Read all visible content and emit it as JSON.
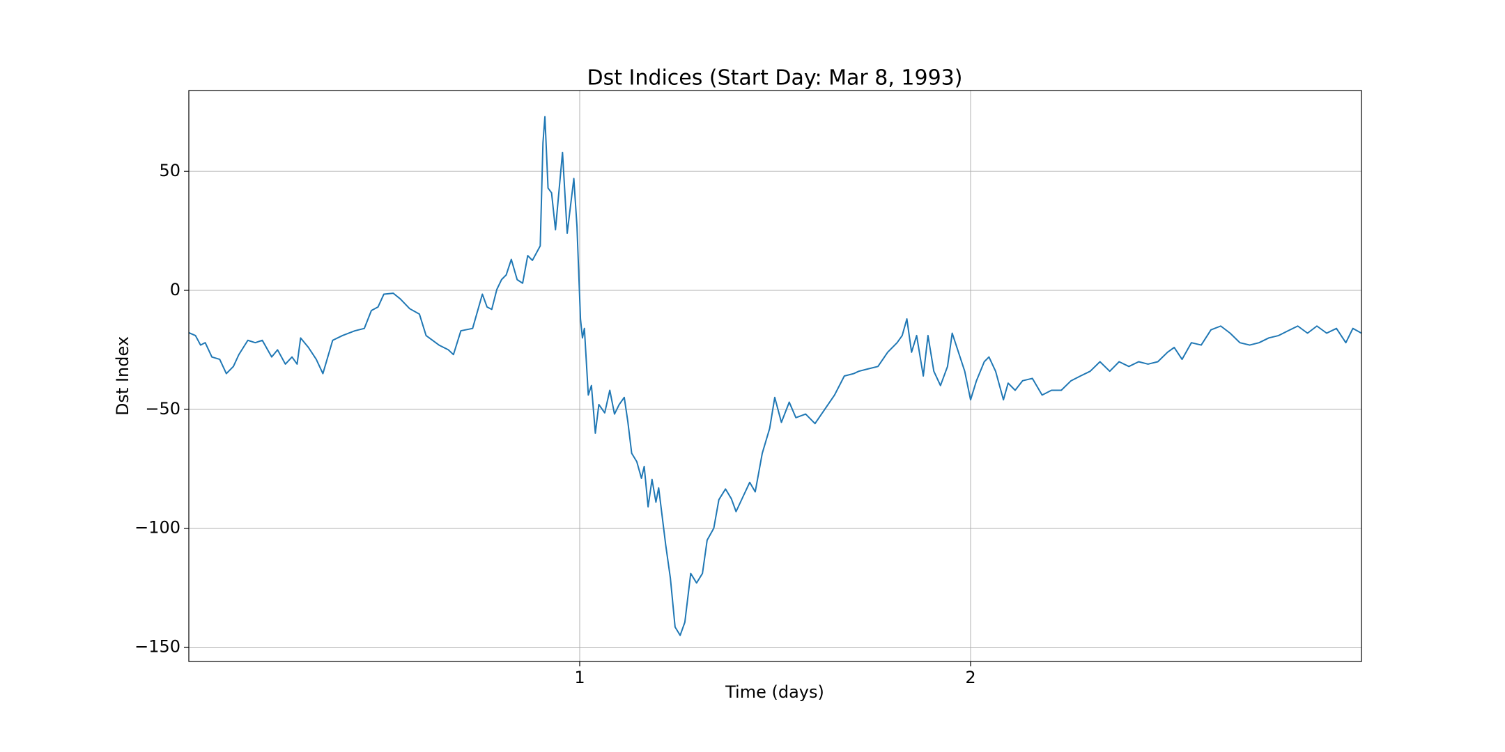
{
  "chart_data": {
    "type": "line",
    "title": "Dst Indices (Start Day: Mar 8, 1993)",
    "x_label": "Time (days)",
    "y_label": "Dst Index",
    "xlim": [
      0,
      3
    ],
    "xticks": [
      1,
      2
    ],
    "ylim": [
      -156,
      84
    ],
    "yticks": [
      {
        "value": -150,
        "label": "−150"
      },
      {
        "value": -100,
        "label": "−100"
      },
      {
        "value": -50,
        "label": "−50"
      },
      0,
      50
    ],
    "grid": true,
    "series": [
      {
        "color": "#1f77b4",
        "x": [
          0,
          0.017,
          0.03,
          0.042,
          0.059,
          0.079,
          0.096,
          0.114,
          0.128,
          0.151,
          0.17,
          0.188,
          0.212,
          0.227,
          0.247,
          0.264,
          0.277,
          0.286,
          0.306,
          0.326,
          0.343,
          0.368,
          0.393,
          0.425,
          0.449,
          0.467,
          0.484,
          0.499,
          0.523,
          0.541,
          0.565,
          0.59,
          0.607,
          0.64,
          0.664,
          0.677,
          0.696,
          0.726,
          0.751,
          0.763,
          0.775,
          0.788,
          0.8,
          0.812,
          0.825,
          0.84,
          0.854,
          0.867,
          0.879,
          0.899,
          0.906,
          0.911,
          0.919,
          0.928,
          0.938,
          0.956,
          0.968,
          0.985,
          0.993,
          1.002,
          1.007,
          1.012,
          1.022,
          1.03,
          1.04,
          1.049,
          1.064,
          1.077,
          1.089,
          1.101,
          1.114,
          1.123,
          1.133,
          1.146,
          1.158,
          1.165,
          1.175,
          1.185,
          1.195,
          1.202,
          1.22,
          1.232,
          1.244,
          1.257,
          1.269,
          1.284,
          1.299,
          1.314,
          1.326,
          1.343,
          1.356,
          1.373,
          1.388,
          1.4,
          1.417,
          1.435,
          1.449,
          1.467,
          1.486,
          1.499,
          1.516,
          1.536,
          1.553,
          1.578,
          1.602,
          1.627,
          1.652,
          1.677,
          1.701,
          1.714,
          1.738,
          1.763,
          1.788,
          1.812,
          1.825,
          1.837,
          1.849,
          1.862,
          1.879,
          1.891,
          1.906,
          1.923,
          1.941,
          1.953,
          1.973,
          1.985,
          2.0,
          2.015,
          2.035,
          2.047,
          2.064,
          2.084,
          2.096,
          2.114,
          2.133,
          2.158,
          2.183,
          2.207,
          2.232,
          2.257,
          2.281,
          2.306,
          2.331,
          2.356,
          2.38,
          2.405,
          2.43,
          2.454,
          2.479,
          2.504,
          2.521,
          2.541,
          2.565,
          2.59,
          2.615,
          2.64,
          2.664,
          2.689,
          2.714,
          2.738,
          2.763,
          2.788,
          2.812,
          2.837,
          2.862,
          2.886,
          2.911,
          2.936,
          2.96,
          2.978,
          3.0
        ],
        "values": [
          -17.8,
          -19,
          -23,
          -22,
          -28,
          -29,
          -35,
          -32,
          -27,
          -21,
          -22,
          -21,
          -28,
          -25,
          -31,
          -28,
          -31,
          -20,
          -24,
          -29,
          -35,
          -21,
          -19,
          -17,
          -16,
          -8.5,
          -7,
          -1.6,
          -1.2,
          -3.6,
          -7.7,
          -10,
          -19,
          -23,
          -25,
          -27,
          -17,
          -16,
          -1.6,
          -7,
          -8,
          0.4,
          4.5,
          6.5,
          13,
          4.5,
          3,
          14.6,
          12.6,
          18.7,
          62,
          73,
          43,
          41,
          25.5,
          58,
          24,
          47,
          27,
          -12,
          -20,
          -16,
          -44,
          -40,
          -60,
          -48,
          -51.5,
          -42,
          -52,
          -48,
          -45,
          -55,
          -68.5,
          -72,
          -79,
          -74,
          -91,
          -79.5,
          -89,
          -83,
          -107,
          -121,
          -141.5,
          -145,
          -139.5,
          -119,
          -123,
          -119,
          -105,
          -100,
          -88,
          -83.5,
          -87.6,
          -93,
          -87,
          -80.7,
          -84.7,
          -68.5,
          -58,
          -45,
          -55.5,
          -47,
          -53.5,
          -52,
          -56,
          -50,
          -44,
          -36,
          -35,
          -34,
          -33,
          -32,
          -26,
          -22,
          -19,
          -12,
          -26,
          -19,
          -36,
          -19,
          -34,
          -40,
          -32,
          -18,
          -28,
          -34,
          -46,
          -38,
          -30,
          -28,
          -34,
          -46,
          -39,
          -42,
          -38,
          -37,
          -44,
          -42,
          -42,
          -38,
          -36,
          -34,
          -30,
          -34,
          -30,
          -32,
          -30,
          -31,
          -30,
          -26,
          -24,
          -29,
          -22,
          -23,
          -16.6,
          -15,
          -18,
          -22,
          -23,
          -22,
          -20,
          -19,
          -17,
          -15,
          -18,
          -15,
          -18,
          -16,
          -22,
          -16,
          -18
        ]
      }
    ]
  }
}
